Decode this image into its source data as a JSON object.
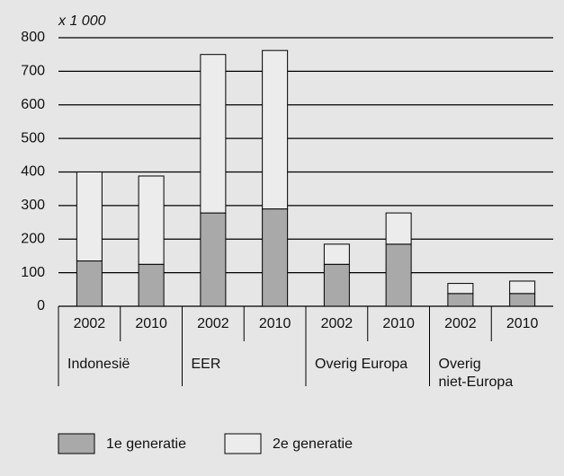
{
  "chart_data": {
    "type": "stacked-bar",
    "unit_label": "x 1 000",
    "categories": [
      "2002",
      "2010",
      "2002",
      "2010",
      "2002",
      "2010",
      "2002",
      "2010"
    ],
    "groups": [
      [
        "Indonesië"
      ],
      [
        "EER"
      ],
      [
        "Overig Europa"
      ],
      [
        "Overig",
        "niet-Europa"
      ]
    ],
    "series": [
      {
        "name": "1e generatie",
        "color": "#a9a9a9",
        "values": [
          135,
          125,
          278,
          290,
          125,
          185,
          38,
          38
        ]
      },
      {
        "name": "2e generatie",
        "color": "#ececec",
        "values": [
          265,
          263,
          472,
          472,
          60,
          93,
          30,
          37
        ]
      }
    ],
    "ylim": [
      0,
      800
    ],
    "yticks": [
      0,
      100,
      200,
      300,
      400,
      500,
      600,
      700,
      800
    ],
    "grid": true,
    "legend": "bottom"
  }
}
